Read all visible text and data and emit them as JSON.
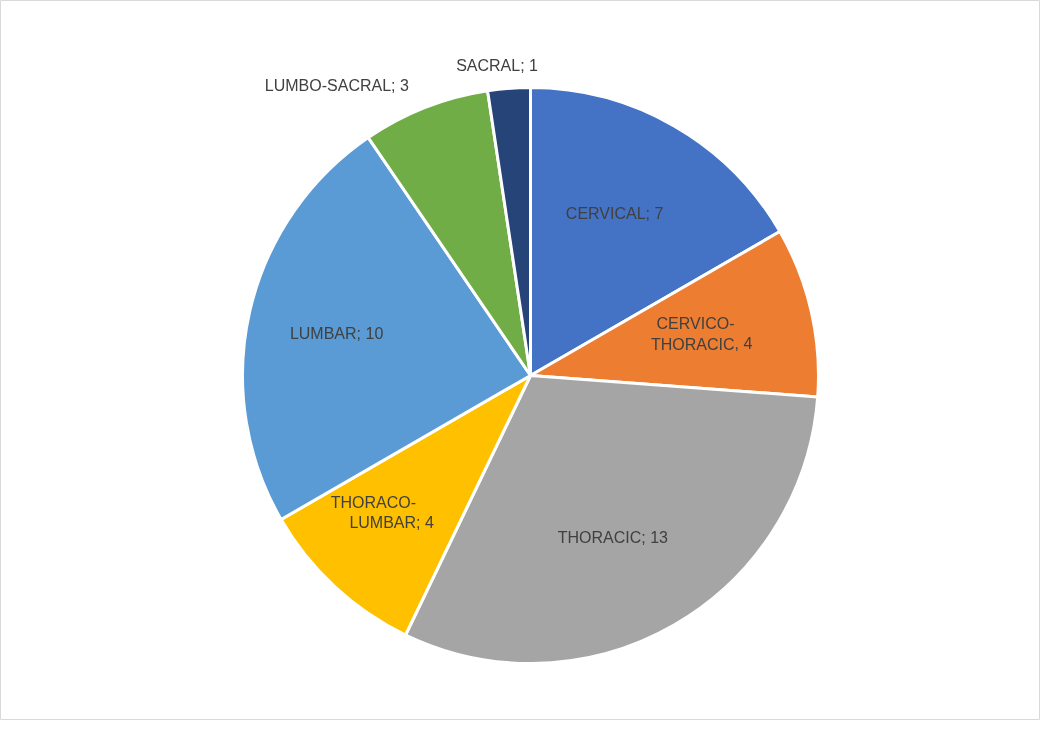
{
  "chart_data": {
    "type": "pie",
    "categories": [
      "CERVICAL",
      "CERVICO-THORACIC",
      "THORACIC",
      "THORACO-LUMBAR",
      "LUMBAR",
      "LUMBO-SACRAL",
      "SACRAL"
    ],
    "values": [
      7,
      4,
      13,
      4,
      10,
      3,
      1
    ],
    "colors": [
      "#4472c4",
      "#ed7d31",
      "#a5a5a5",
      "#ffc000",
      "#5b9bd5",
      "#70ad47",
      "#264478"
    ],
    "value_labels": [
      "; 7",
      ", 4",
      "; 13",
      "; 4",
      "; 10",
      "; 3",
      "; 1"
    ]
  }
}
